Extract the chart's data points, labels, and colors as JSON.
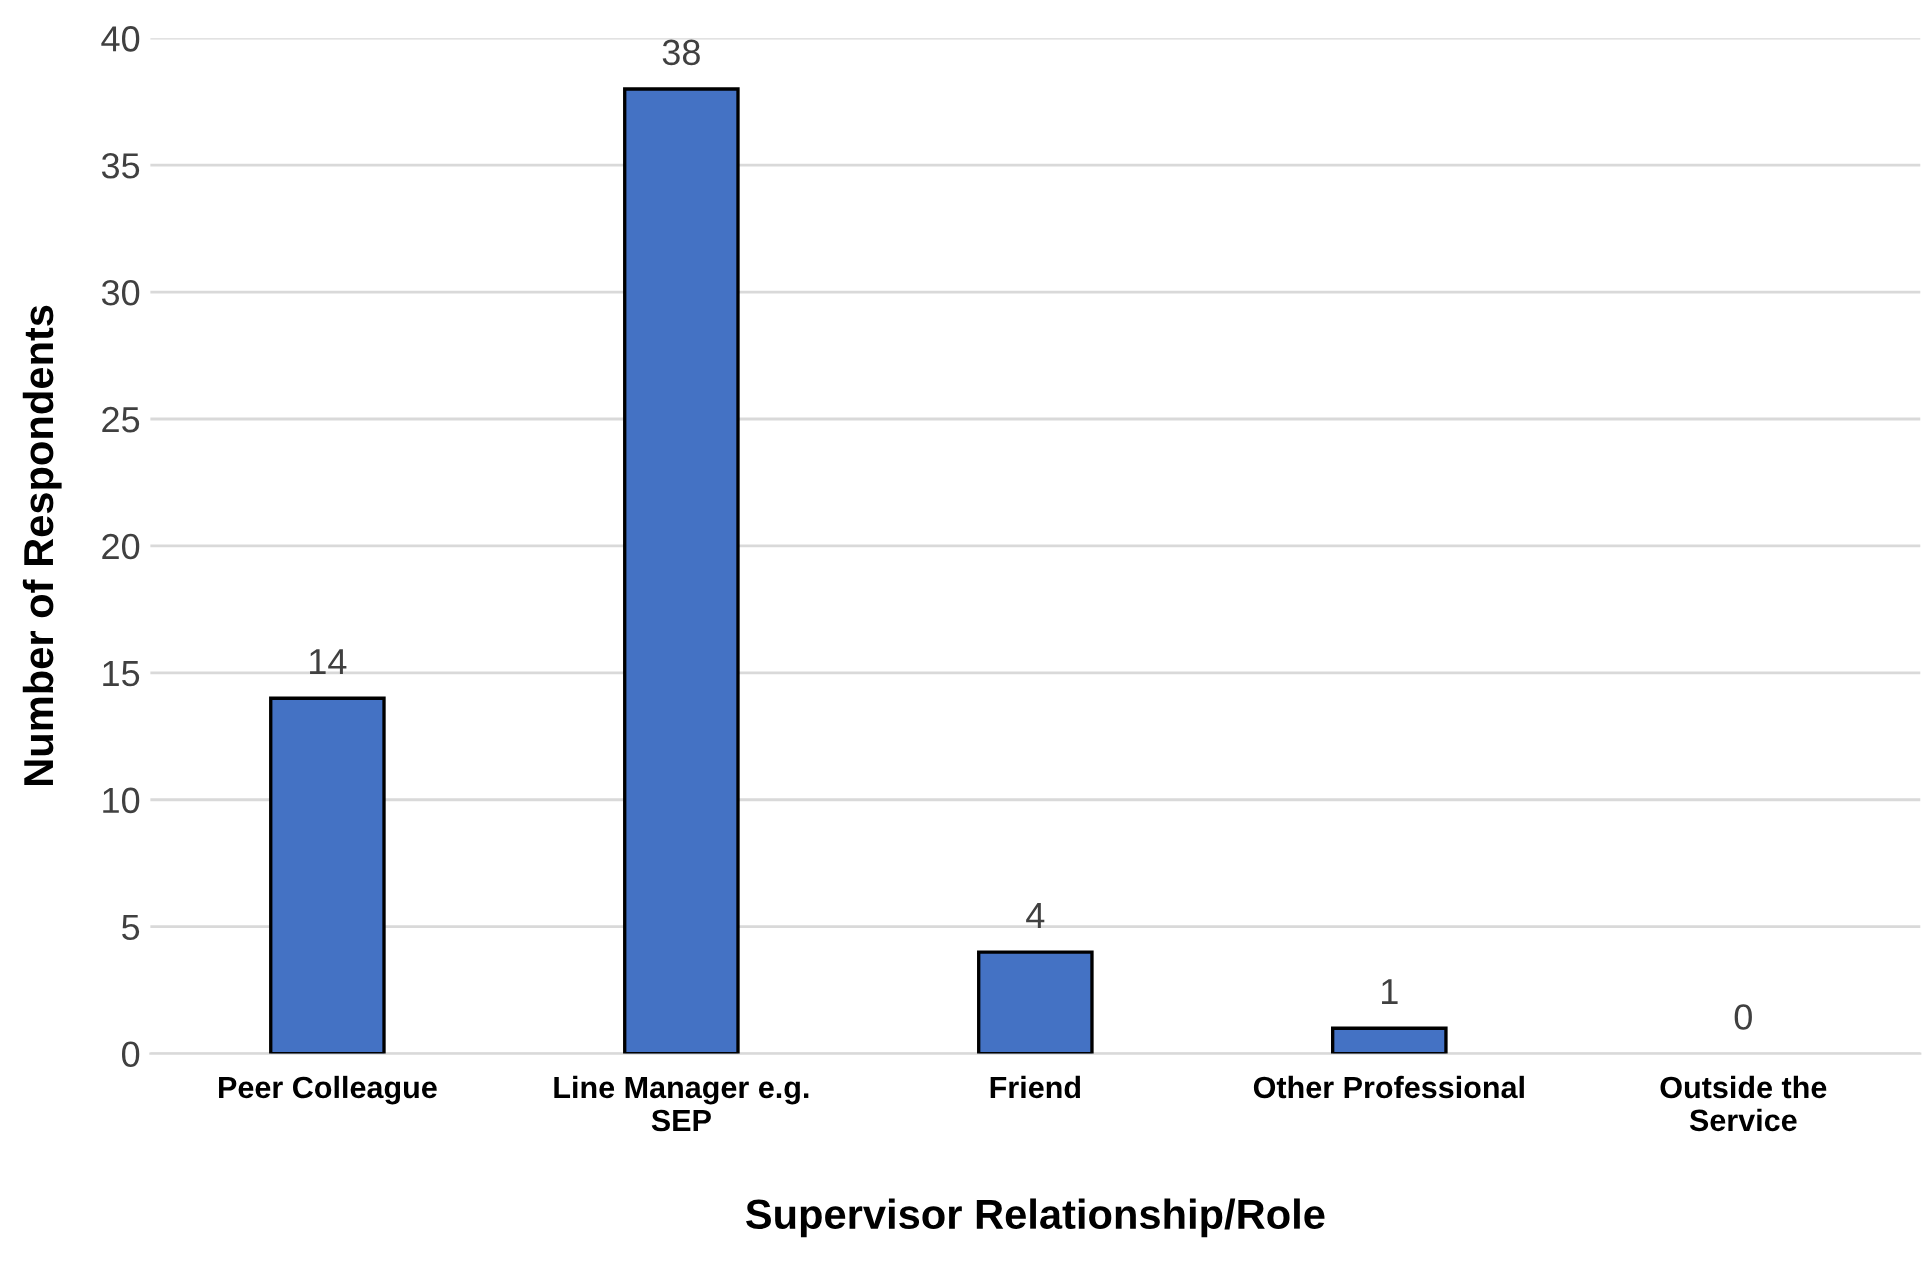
{
  "chart_data": {
    "type": "bar",
    "xlabel": "Supervisor Relationship/Role",
    "ylabel": "Number of Respondents",
    "categories": [
      "Peer Colleague",
      "Line Manager e.g.\nSEP",
      "Friend",
      "Other Professional",
      "Outside the\nService"
    ],
    "values": [
      14,
      38,
      4,
      1,
      0
    ],
    "color": "#4472c4",
    "ylim": [
      0,
      40
    ],
    "yticks": [
      0,
      5,
      10,
      15,
      20,
      25,
      30,
      35,
      40
    ],
    "grid": "y",
    "data_labels": true
  }
}
